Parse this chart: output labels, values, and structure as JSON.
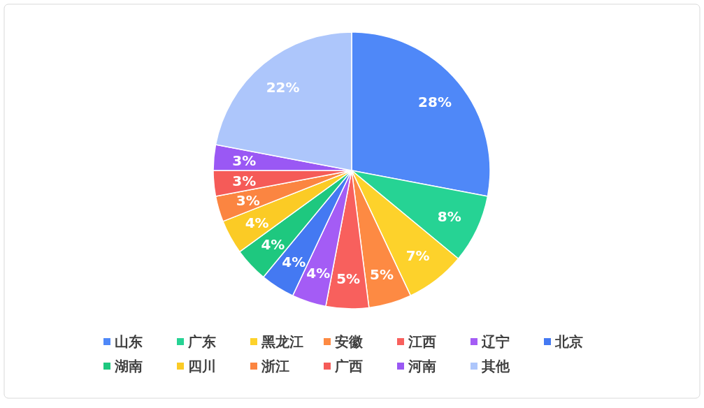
{
  "chart_data": {
    "type": "pie",
    "categories": [
      "山东",
      "广东",
      "黑龙江",
      "安徽",
      "江西",
      "辽宁",
      "北京",
      "湖南",
      "四川",
      "浙江",
      "广西",
      "河南",
      "其他"
    ],
    "values": [
      28,
      8,
      7,
      5,
      5,
      4,
      4,
      4,
      4,
      3,
      3,
      3,
      22
    ],
    "colors": [
      "#4f88f8",
      "#26d394",
      "#fdd22b",
      "#fd8a43",
      "#f8605d",
      "#a45cf5",
      "#4479f2",
      "#1ec87f",
      "#fbcb25",
      "#fb8541",
      "#f55b58",
      "#9a58f4",
      "#adc6fb"
    ],
    "value_labels": [
      "28%",
      "8%",
      "7%",
      "5%",
      "5%",
      "4%",
      "4%",
      "4%",
      "4%",
      "3%",
      "3%",
      "3%",
      "22%"
    ],
    "legend": "bottom"
  }
}
